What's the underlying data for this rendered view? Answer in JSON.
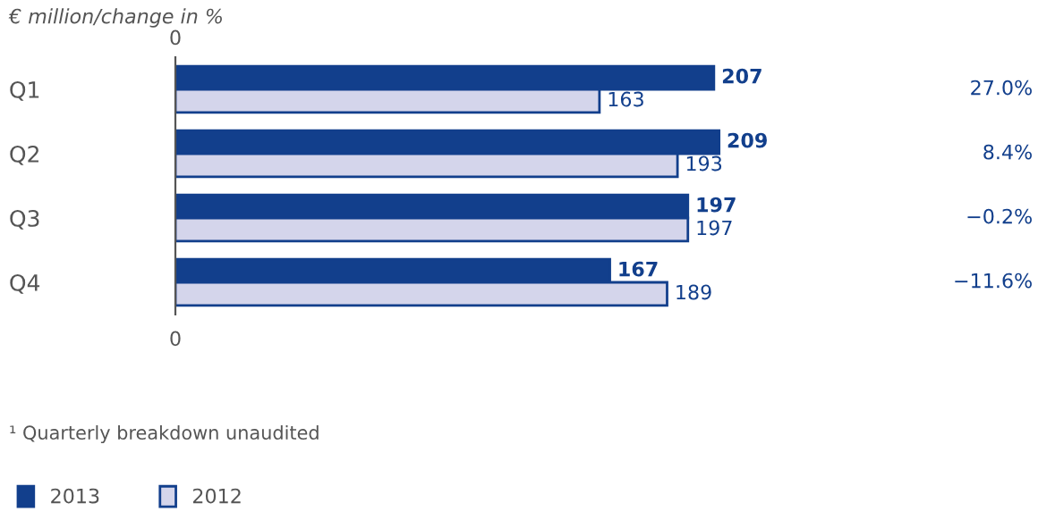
{
  "chart_data": {
    "type": "bar",
    "orientation": "horizontal",
    "data_labels": true,
    "title": "€ million/change in %",
    "categories": [
      "Q1",
      "Q2",
      "Q3",
      "Q4"
    ],
    "series": [
      {
        "name": "2013",
        "color": "#123f8c",
        "values": [
          207,
          209,
          197,
          167
        ]
      },
      {
        "name": "2012",
        "color": "#d4d5eb",
        "values": [
          163,
          193,
          197,
          189
        ]
      }
    ],
    "annotations": [
      "0",
      "0",
      "27.0%",
      "8.4%",
      "−0.2%",
      "−11.6%",
      "¹ Quarterly breakdown unaudited"
    ],
    "legend": "bottom left"
  }
}
